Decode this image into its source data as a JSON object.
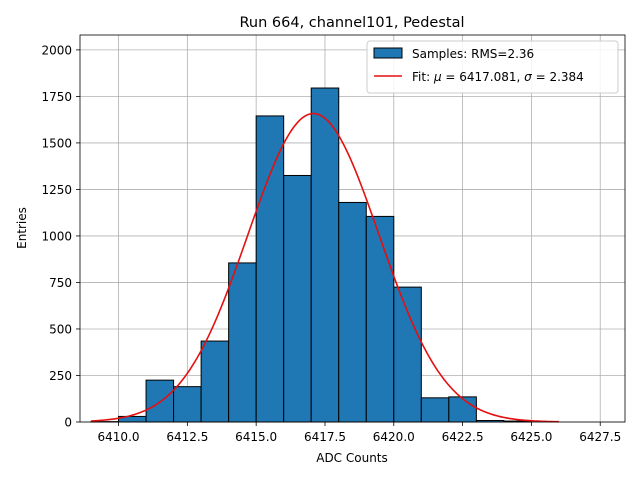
{
  "chart_data": {
    "type": "bar",
    "subtype": "histogram",
    "title": "Run 664, channel101, Pedestal",
    "xlabel": "ADC Counts",
    "ylabel": "Entries",
    "xlim": [
      6408.6,
      6428.4
    ],
    "ylim": [
      0,
      2080
    ],
    "xticks": [
      6410.0,
      6412.5,
      6415.0,
      6417.5,
      6420.0,
      6422.5,
      6425.0,
      6427.5
    ],
    "xtick_labels": [
      "6410.0",
      "6412.5",
      "6415.0",
      "6417.5",
      "6420.0",
      "6422.5",
      "6425.0",
      "6427.5"
    ],
    "yticks": [
      0,
      250,
      500,
      750,
      1000,
      1250,
      1500,
      1750,
      2000
    ],
    "ytick_labels": [
      "0",
      "250",
      "500",
      "750",
      "1000",
      "1250",
      "1500",
      "1750",
      "2000"
    ],
    "grid": true,
    "legend_position": "top-right",
    "bar_color": "#1f77b4",
    "fit_color": "#e41010",
    "bins": [
      {
        "left": 6409.0,
        "right": 6410.0,
        "value": 2
      },
      {
        "left": 6410.0,
        "right": 6411.0,
        "value": 30
      },
      {
        "left": 6411.0,
        "right": 6412.0,
        "value": 225
      },
      {
        "left": 6412.0,
        "right": 6413.0,
        "value": 190
      },
      {
        "left": 6413.0,
        "right": 6414.0,
        "value": 435
      },
      {
        "left": 6414.0,
        "right": 6415.0,
        "value": 855
      },
      {
        "left": 6415.0,
        "right": 6416.0,
        "value": 1645
      },
      {
        "left": 6416.0,
        "right": 6417.0,
        "value": 1325
      },
      {
        "left": 6417.0,
        "right": 6418.0,
        "value": 1795
      },
      {
        "left": 6418.0,
        "right": 6419.0,
        "value": 1180
      },
      {
        "left": 6419.0,
        "right": 6420.0,
        "value": 1105
      },
      {
        "left": 6420.0,
        "right": 6421.0,
        "value": 725
      },
      {
        "left": 6421.0,
        "right": 6422.0,
        "value": 130
      },
      {
        "left": 6422.0,
        "right": 6423.0,
        "value": 135
      },
      {
        "left": 6423.0,
        "right": 6424.0,
        "value": 8
      },
      {
        "left": 6424.0,
        "right": 6425.0,
        "value": 5
      },
      {
        "left": 6425.0,
        "right": 6426.0,
        "value": 0
      },
      {
        "left": 6426.0,
        "right": 6427.0,
        "value": 0
      },
      {
        "left": 6427.0,
        "right": 6428.0,
        "value": 0
      }
    ],
    "fit": {
      "type": "gaussian",
      "mu": 6417.081,
      "sigma": 2.384,
      "amplitude": 1658,
      "x_range": [
        6409.0,
        6426.0
      ]
    },
    "legend": {
      "samples_label": "Samples: RMS=2.36",
      "fit_label_prefix": "Fit: ",
      "mu_symbol": "μ",
      "mu_text": " = 6417.081, ",
      "sigma_symbol": "σ",
      "sigma_text": " = 2.384"
    }
  }
}
